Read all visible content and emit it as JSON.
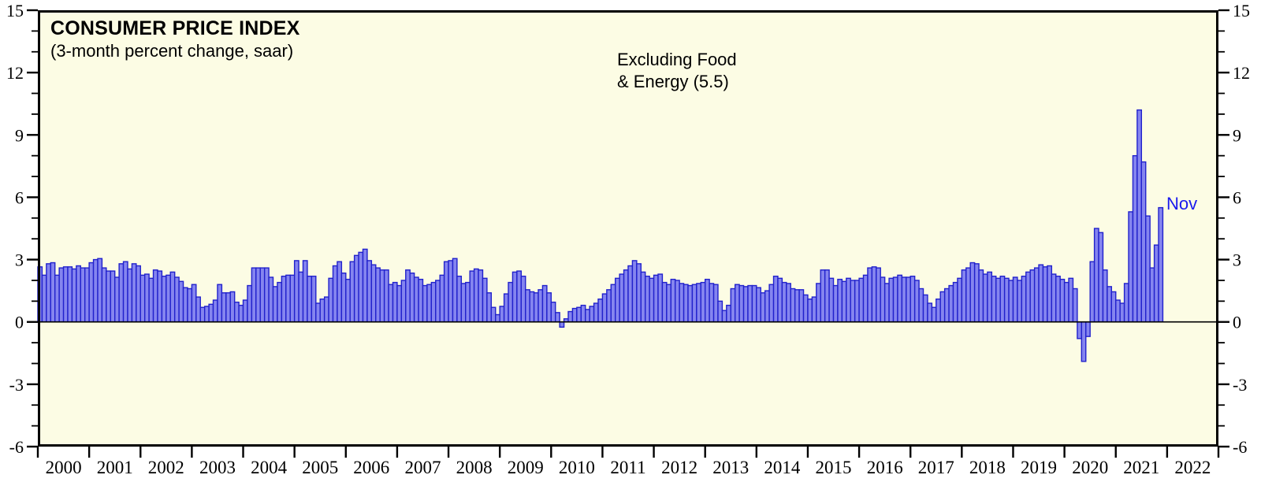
{
  "chart": {
    "title": "CONSUMER PRICE INDEX",
    "subtitle": "(3-month percent change, saar)",
    "annotation_line1": "Excluding Food",
    "annotation_line2": "& Energy (5.5)",
    "last_point_label": "Nov",
    "colors": {
      "plot_background": "#FCFCE4",
      "bar_fill": "#8585EF",
      "bar_stroke": "#2121CC",
      "axis": "#000000",
      "last_label_blue": "#1A1AEE"
    }
  },
  "chart_data": {
    "type": "bar",
    "title": "CONSUMER PRICE INDEX",
    "subtitle": "(3-month percent change, saar)",
    "annotation": "Excluding Food & Energy (5.5)",
    "last_point_label": "Nov",
    "series_name": "CPI excluding food & energy, 3-month percent change, seasonally adjusted annual rate",
    "ylim": [
      -6,
      15
    ],
    "y_major_ticks": [
      -6,
      -3,
      0,
      3,
      6,
      9,
      12,
      15
    ],
    "y_minor_step": 1,
    "grid": false,
    "x_year_labels": [
      "2000",
      "2001",
      "2002",
      "2003",
      "2004",
      "2005",
      "2006",
      "2007",
      "2008",
      "2009",
      "2010",
      "2011",
      "2012",
      "2013",
      "2014",
      "2015",
      "2016",
      "2017",
      "2018",
      "2019",
      "2020",
      "2021",
      "2022"
    ],
    "x_axis_span_years": 23,
    "start_month": "2000-01",
    "end_month": "2021-11",
    "last_value": 5.5,
    "values": [
      2.65,
      2.25,
      2.8,
      2.85,
      2.25,
      2.6,
      2.65,
      2.65,
      2.55,
      2.7,
      2.6,
      2.6,
      2.85,
      3.0,
      3.05,
      2.6,
      2.45,
      2.45,
      2.15,
      2.8,
      2.9,
      2.55,
      2.8,
      2.7,
      2.25,
      2.3,
      2.1,
      2.5,
      2.45,
      2.2,
      2.25,
      2.4,
      2.15,
      1.95,
      1.65,
      1.6,
      1.8,
      1.2,
      0.7,
      0.75,
      0.85,
      1.05,
      1.8,
      1.4,
      1.4,
      1.45,
      0.95,
      0.8,
      1.05,
      1.75,
      2.6,
      2.6,
      2.6,
      2.6,
      2.15,
      1.7,
      1.9,
      2.2,
      2.25,
      2.25,
      2.95,
      2.4,
      2.95,
      2.2,
      2.2,
      0.9,
      1.1,
      1.2,
      2.1,
      2.7,
      2.9,
      2.35,
      2.05,
      2.9,
      3.2,
      3.35,
      3.5,
      2.95,
      2.75,
      2.6,
      2.5,
      2.5,
      1.8,
      1.9,
      1.75,
      2.0,
      2.5,
      2.35,
      2.15,
      2.05,
      1.75,
      1.8,
      1.9,
      2.0,
      2.25,
      2.9,
      2.95,
      3.05,
      2.2,
      1.85,
      1.9,
      2.45,
      2.55,
      2.5,
      2.1,
      1.4,
      0.7,
      0.35,
      0.75,
      1.35,
      1.9,
      2.4,
      2.45,
      2.2,
      1.55,
      1.45,
      1.4,
      1.55,
      1.75,
      1.4,
      0.95,
      0.45,
      -0.25,
      0.15,
      0.5,
      0.65,
      0.7,
      0.8,
      0.6,
      0.75,
      0.9,
      1.1,
      1.35,
      1.55,
      1.8,
      2.1,
      2.3,
      2.5,
      2.7,
      2.95,
      2.8,
      2.4,
      2.2,
      2.1,
      2.25,
      2.3,
      1.9,
      1.8,
      2.05,
      2.0,
      1.85,
      1.8,
      1.75,
      1.8,
      1.85,
      1.9,
      2.05,
      1.85,
      1.8,
      1.0,
      0.55,
      0.8,
      1.6,
      1.8,
      1.75,
      1.7,
      1.75,
      1.75,
      1.65,
      1.4,
      1.5,
      1.8,
      2.2,
      2.1,
      1.9,
      1.85,
      1.6,
      1.55,
      1.55,
      1.3,
      1.1,
      1.2,
      1.85,
      2.5,
      2.5,
      2.1,
      1.75,
      2.05,
      1.95,
      2.1,
      2.0,
      2.0,
      2.1,
      2.25,
      2.6,
      2.65,
      2.6,
      2.15,
      1.85,
      2.1,
      2.15,
      2.25,
      2.15,
      2.15,
      2.2,
      2.0,
      1.6,
      1.3,
      0.9,
      0.7,
      1.1,
      1.45,
      1.6,
      1.75,
      1.9,
      2.1,
      2.5,
      2.6,
      2.85,
      2.8,
      2.5,
      2.3,
      2.4,
      2.2,
      2.1,
      2.2,
      2.1,
      2.0,
      2.15,
      2.0,
      2.2,
      2.4,
      2.5,
      2.6,
      2.75,
      2.65,
      2.7,
      2.3,
      2.2,
      2.05,
      1.9,
      2.1,
      1.6,
      -0.8,
      -1.9,
      -0.7,
      2.9,
      4.5,
      4.3,
      2.5,
      1.7,
      1.45,
      1.05,
      0.9,
      1.85,
      5.3,
      8.0,
      10.2,
      7.7,
      5.1,
      2.6,
      3.7,
      5.5
    ]
  }
}
